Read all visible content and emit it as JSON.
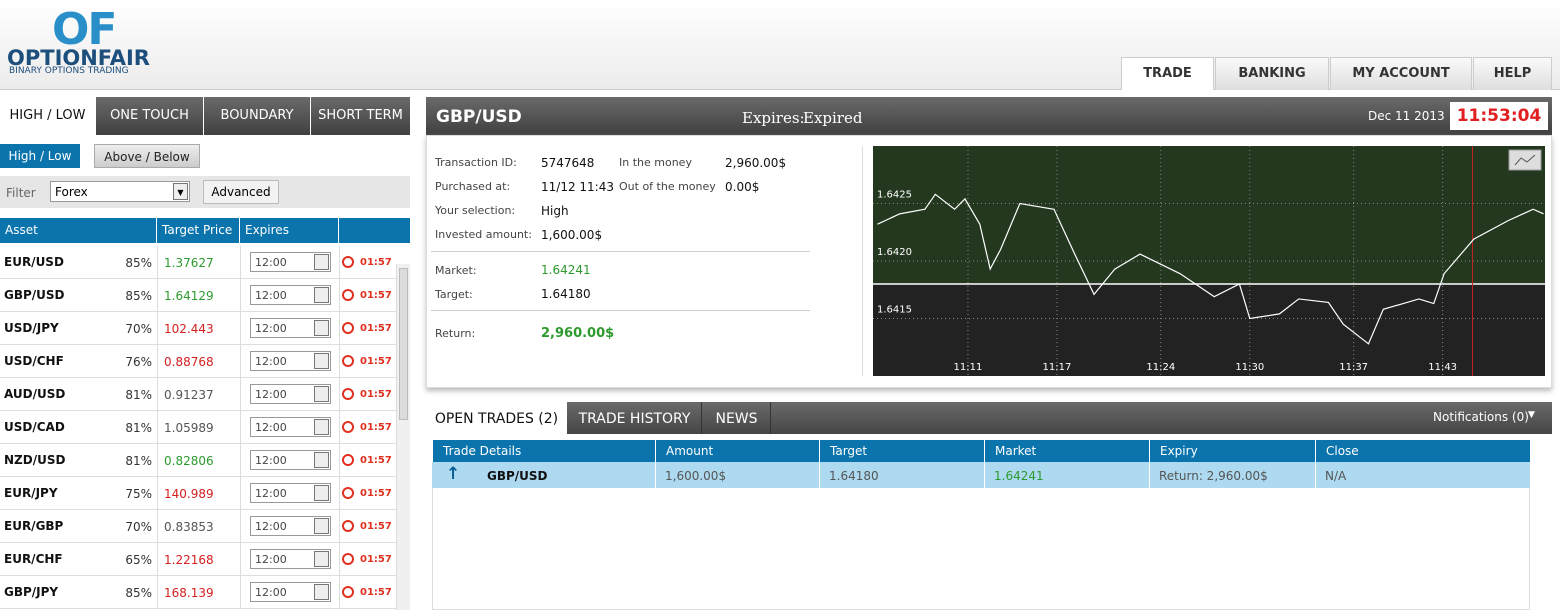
{
  "logo": {
    "mark": "OF",
    "brand": "OPTIONFAIR",
    "tagline": "BINARY OPTIONS TRADING"
  },
  "nav": [
    "TRADE",
    "BANKING",
    "MY ACCOUNT",
    "HELP"
  ],
  "option_tabs": [
    "HIGH / LOW",
    "ONE TOUCH",
    "BOUNDARY",
    "SHORT TERM"
  ],
  "sub_tabs": [
    "High / Low",
    "Above / Below"
  ],
  "filter": {
    "label": "Filter",
    "value": "Forex",
    "button": "Advanced"
  },
  "assets": {
    "headers": [
      "Asset",
      "Target Price",
      "Expires"
    ],
    "rows": [
      {
        "asset": "EUR/USD",
        "payout": "85%",
        "price": "1.37627",
        "color": "#2e9a2e",
        "expires": "12:00",
        "countdown": "01:57"
      },
      {
        "asset": "GBP/USD",
        "payout": "85%",
        "price": "1.64129",
        "color": "#2e9a2e",
        "expires": "12:00",
        "countdown": "01:57"
      },
      {
        "asset": "USD/JPY",
        "payout": "70%",
        "price": "102.443",
        "color": "#d42020",
        "expires": "12:00",
        "countdown": "01:57"
      },
      {
        "asset": "USD/CHF",
        "payout": "76%",
        "price": "0.88768",
        "color": "#d42020",
        "expires": "12:00",
        "countdown": "01:57"
      },
      {
        "asset": "AUD/USD",
        "payout": "81%",
        "price": "0.91237",
        "color": "#555555",
        "expires": "12:00",
        "countdown": "01:57"
      },
      {
        "asset": "USD/CAD",
        "payout": "81%",
        "price": "1.05989",
        "color": "#555555",
        "expires": "12:00",
        "countdown": "01:57"
      },
      {
        "asset": "NZD/USD",
        "payout": "81%",
        "price": "0.82806",
        "color": "#2e9a2e",
        "expires": "12:00",
        "countdown": "01:57"
      },
      {
        "asset": "EUR/JPY",
        "payout": "75%",
        "price": "140.989",
        "color": "#d42020",
        "expires": "12:00",
        "countdown": "01:57"
      },
      {
        "asset": "EUR/GBP",
        "payout": "70%",
        "price": "0.83853",
        "color": "#555555",
        "expires": "12:00",
        "countdown": "01:57"
      },
      {
        "asset": "EUR/CHF",
        "payout": "65%",
        "price": "1.22168",
        "color": "#d42020",
        "expires": "12:00",
        "countdown": "01:57"
      },
      {
        "asset": "GBP/JPY",
        "payout": "85%",
        "price": "168.139",
        "color": "#d42020",
        "expires": "12:00",
        "countdown": "01:57"
      }
    ]
  },
  "panel": {
    "pair": "GBP/USD",
    "expires_label": "Expires:",
    "expires_value": "Expired",
    "date": "Dec 11 2013",
    "clock": "11:53:04"
  },
  "details": {
    "left": [
      [
        "Transaction ID:",
        "5747648"
      ],
      [
        "Purchased at:",
        "11/12 11:43"
      ],
      [
        "Your selection:",
        "High"
      ],
      [
        "Invested amount:",
        "1,600.00$"
      ]
    ],
    "right": [
      [
        "In the money",
        "2,960.00$"
      ],
      [
        "Out of the money",
        "0.00$"
      ]
    ],
    "market": [
      "Market:",
      "1.64241"
    ],
    "target": [
      "Target:",
      "1.64180"
    ],
    "return": [
      "Return:",
      "2,960.00$"
    ]
  },
  "chart_data": {
    "type": "line",
    "x": [
      664.9,
      666.4,
      668.1,
      668.8,
      670.1,
      670.8,
      671.8,
      672.5,
      673.2,
      674.5,
      676.8,
      678.2,
      679.5,
      680.9,
      682.6,
      685.3,
      687.6,
      689.3,
      690.0,
      692.0,
      693.3,
      695.3,
      696.3,
      698.0,
      699.0,
      701.4,
      702.4,
      703.1,
      705.1,
      707.4,
      709.1,
      709.8
    ],
    "series": [
      {
        "color": "#ffffff",
        "values": [
          1.64232,
          1.64241,
          1.64245,
          1.64258,
          1.64245,
          1.64254,
          1.64232,
          1.64193,
          1.6421,
          1.6425,
          1.64245,
          1.64206,
          1.64171,
          1.64193,
          1.64206,
          1.64189,
          1.64169,
          1.6418,
          1.6415,
          1.64154,
          1.64167,
          1.64164,
          1.64145,
          1.64128,
          1.64158,
          1.64167,
          1.64163,
          1.64189,
          1.64219,
          1.64235,
          1.64245,
          1.64241
        ]
      }
    ],
    "xlim": [
      664.6,
      709.9
    ],
    "ylim": [
      1.641,
      1.643
    ],
    "xticks": [
      {
        "value": 671,
        "label": "11:11"
      },
      {
        "value": 677,
        "label": "11:17"
      },
      {
        "value": 684,
        "label": "11:24"
      },
      {
        "value": 690,
        "label": "11:30"
      },
      {
        "value": 697,
        "label": "11:37"
      },
      {
        "value": 703,
        "label": "11:43"
      }
    ],
    "yticks": [
      1.6415,
      {
        "value": 1.642,
        "label": "1.6420"
      },
      1.6425
    ],
    "grid": true
  },
  "trades": {
    "tabs": [
      "OPEN TRADES (2)",
      "TRADE HISTORY",
      "NEWS"
    ],
    "notifications": "Notifications (0)",
    "headers": [
      "Trade Details",
      "Amount",
      "Target",
      "Market",
      "Expiry",
      "Close"
    ],
    "rows": [
      [
        "GBP/USD",
        "1,600.00$",
        "1.64180",
        "1.64241",
        "Return: 2,960.00$",
        "N/A"
      ]
    ]
  }
}
